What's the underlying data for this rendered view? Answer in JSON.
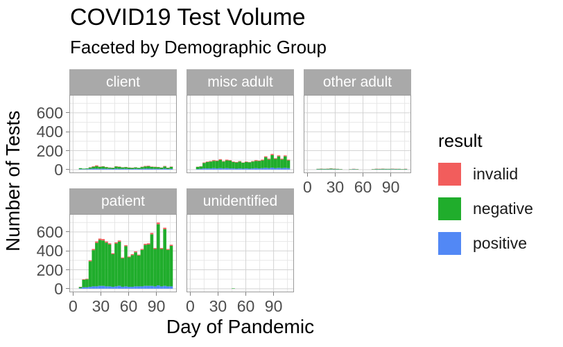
{
  "title": "COVID19 Test Volume",
  "subtitle": "Faceted by Demographic Group",
  "x_axis_title": "Day of Pandemic",
  "y_axis_title": "Number of Tests",
  "legend": {
    "title": "result",
    "items": [
      {
        "label": "invalid",
        "color": "#F25D5C"
      },
      {
        "label": "negative",
        "color": "#20AD2C"
      },
      {
        "label": "positive",
        "color": "#5288F5"
      }
    ]
  },
  "colors": {
    "strip_background": "#A9A9A9",
    "strip_text": "#FFFFFF",
    "panel_border": "#9A9A9A",
    "grid_major": "#D3D3D3",
    "grid_minor": "#E7E7E7",
    "tick_mark": "#808080",
    "tick_label": "#4D4D4D"
  },
  "chart_data": {
    "type": "bar",
    "stacked": true,
    "title": "COVID19 Test Volume",
    "subtitle": "Faceted by Demographic Group",
    "xlabel": "Day of Pandemic",
    "ylabel": "Number of Tests",
    "legend_title": "result",
    "legend_position": "right",
    "grid": true,
    "x_ticks": [
      0,
      30,
      60,
      90
    ],
    "x_minor_ticks": [
      15,
      45,
      75,
      105
    ],
    "y_ticks": [
      0,
      200,
      400,
      600
    ],
    "y_minor_ticks": [
      100,
      300,
      500,
      700
    ],
    "xlim_expanded": [
      -4,
      112
    ],
    "ylim_expanded": [
      -38,
      790
    ],
    "series_order": [
      "positive",
      "negative",
      "invalid"
    ],
    "series_colors": {
      "positive": "#5288F5",
      "negative": "#20AD2C",
      "invalid": "#F25D5C"
    },
    "days": [
      8,
      11.5,
      15,
      18.5,
      22,
      25.5,
      29,
      32.5,
      36,
      39.5,
      43,
      46.5,
      50,
      53.5,
      57,
      60.5,
      64,
      67.5,
      71,
      74.5,
      78,
      81.5,
      85,
      88.5,
      92,
      95.5,
      99,
      102.5,
      106
    ],
    "facets": [
      {
        "label": "client",
        "row": 1,
        "col": 1,
        "show_y_axis": true,
        "show_x_axis": false,
        "positive": [
          5,
          4,
          5,
          8,
          10,
          10,
          8,
          10,
          8,
          8,
          6,
          10,
          8,
          8,
          8,
          6,
          6,
          8,
          6,
          8,
          10,
          10,
          8,
          8,
          8,
          6,
          10,
          6,
          8
        ],
        "negative": [
          10,
          6,
          7,
          14,
          20,
          27,
          21,
          22,
          18,
          12,
          12,
          22,
          21,
          15,
          18,
          14,
          12,
          15,
          12,
          19,
          23,
          25,
          21,
          19,
          18,
          14,
          23,
          12,
          21
        ],
        "invalid": [
          0,
          0,
          0,
          3,
          5,
          8,
          3,
          3,
          2,
          2,
          2,
          3,
          3,
          2,
          2,
          2,
          2,
          2,
          0,
          3,
          5,
          5,
          3,
          3,
          2,
          2,
          5,
          2,
          3
        ]
      },
      {
        "label": "misc adult",
        "row": 1,
        "col": 2,
        "show_y_axis": false,
        "show_x_axis": false,
        "positive": [
          5,
          8,
          12,
          12,
          12,
          15,
          12,
          15,
          12,
          15,
          12,
          12,
          10,
          12,
          10,
          12,
          10,
          12,
          15,
          12,
          15,
          18,
          15,
          20,
          15,
          18,
          15,
          18,
          15
        ],
        "negative": [
          23,
          25,
          58,
          68,
          73,
          77,
          78,
          87,
          73,
          82,
          83,
          68,
          65,
          73,
          62,
          68,
          67,
          73,
          77,
          78,
          82,
          112,
          92,
          133,
          97,
          122,
          92,
          122,
          82
        ],
        "invalid": [
          2,
          2,
          5,
          5,
          5,
          8,
          5,
          8,
          5,
          8,
          5,
          5,
          5,
          5,
          3,
          5,
          3,
          5,
          8,
          5,
          8,
          10,
          8,
          12,
          8,
          10,
          8,
          10,
          8
        ]
      },
      {
        "label": "other adult",
        "row": 1,
        "col": 3,
        "show_y_axis": false,
        "show_x_axis": true,
        "positive": [
          0,
          2,
          2,
          2,
          2,
          3,
          2,
          2,
          1,
          0,
          0,
          1,
          3,
          1,
          0,
          0,
          0,
          0,
          1,
          2,
          2,
          2,
          2,
          2,
          3,
          2,
          2,
          1,
          2
        ],
        "negative": [
          0,
          5,
          6,
          5,
          6,
          7,
          6,
          5,
          4,
          0,
          0,
          3,
          3,
          4,
          0,
          0,
          0,
          0,
          4,
          5,
          4,
          6,
          5,
          5,
          5,
          4,
          5,
          4,
          4
        ],
        "invalid": [
          0,
          1,
          2,
          1,
          2,
          2,
          2,
          1,
          1,
          0,
          0,
          1,
          2,
          1,
          0,
          0,
          0,
          0,
          1,
          2,
          2,
          2,
          1,
          1,
          2,
          2,
          1,
          1,
          2
        ]
      },
      {
        "label": "patient",
        "row": 2,
        "col": 1,
        "show_y_axis": true,
        "show_x_axis": true,
        "positive": [
          5,
          15,
          15,
          20,
          25,
          25,
          30,
          30,
          25,
          25,
          20,
          25,
          30,
          20,
          25,
          20,
          20,
          25,
          25,
          25,
          30,
          30,
          30,
          25,
          35,
          25,
          30,
          25,
          25
        ],
        "negative": [
          13,
          80,
          85,
          270,
          383,
          460,
          485,
          480,
          463,
          443,
          345,
          453,
          468,
          302,
          425,
          312,
          335,
          360,
          327,
          385,
          433,
          438,
          545,
          395,
          647,
          395,
          600,
          385,
          428
        ],
        "invalid": [
          2,
          5,
          5,
          10,
          12,
          15,
          15,
          15,
          12,
          12,
          10,
          12,
          12,
          8,
          10,
          8,
          10,
          10,
          8,
          10,
          12,
          12,
          15,
          10,
          18,
          10,
          15,
          10,
          12
        ]
      },
      {
        "label": "unidentified",
        "row": 2,
        "col": 2,
        "show_y_axis": false,
        "show_x_axis": true,
        "positive": [
          0,
          0,
          0,
          0,
          0,
          0,
          0,
          0,
          0,
          0,
          0,
          0,
          0,
          0,
          0,
          0,
          0,
          0,
          0,
          0,
          0,
          0,
          0,
          0,
          0,
          0,
          0,
          0,
          0
        ],
        "negative": [
          0,
          0,
          0,
          0,
          0,
          0,
          0,
          0,
          0,
          0,
          0,
          4,
          0,
          0,
          0,
          0,
          0,
          0,
          0,
          0,
          0,
          0,
          0,
          0,
          0,
          0,
          0,
          0,
          0
        ],
        "invalid": [
          0,
          0,
          0,
          0,
          0,
          0,
          0,
          0,
          0,
          0,
          0,
          0,
          0,
          0,
          0,
          0,
          0,
          0,
          0,
          0,
          0,
          0,
          0,
          0,
          0,
          0,
          0,
          0,
          0
        ]
      }
    ]
  }
}
